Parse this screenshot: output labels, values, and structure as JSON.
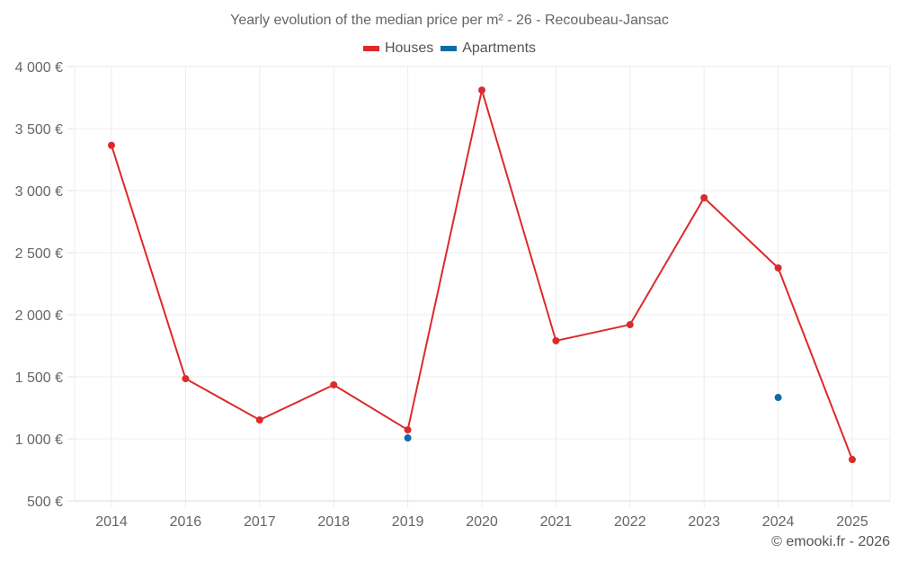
{
  "title": "Yearly evolution of the median price per m² - 26 - Recoubeau-Jansac",
  "legend": [
    {
      "label": "Houses",
      "color": "#dc2a2a"
    },
    {
      "label": "Apartments",
      "color": "#0e6ba8"
    }
  ],
  "credit": "© emooki.fr - 2026",
  "chart_data": {
    "type": "line",
    "title": "Yearly evolution of the median price per m² - 26 - Recoubeau-Jansac",
    "xlabel": "",
    "ylabel": "",
    "categories": [
      "2014",
      "2016",
      "2017",
      "2018",
      "2019",
      "2020",
      "2021",
      "2022",
      "2023",
      "2024",
      "2025"
    ],
    "series": [
      {
        "name": "Houses",
        "color": "#dc2a2a",
        "values": [
          3365,
          1485,
          1152,
          1435,
          1072,
          3810,
          1790,
          1920,
          2942,
          2377,
          833
        ]
      },
      {
        "name": "Apartments",
        "color": "#0e6ba8",
        "values": [
          null,
          null,
          null,
          null,
          1007,
          null,
          null,
          null,
          null,
          1333,
          null
        ]
      }
    ],
    "ylim": [
      500,
      4000
    ],
    "yticks": [
      500,
      1000,
      1500,
      2000,
      2500,
      3000,
      3500,
      4000
    ],
    "ytick_labels": [
      "500 €",
      "1 000 €",
      "1 500 €",
      "2 000 €",
      "2 500 €",
      "3 000 €",
      "3 500 €",
      "4 000 €"
    ],
    "grid": true,
    "legend_position": "top"
  }
}
